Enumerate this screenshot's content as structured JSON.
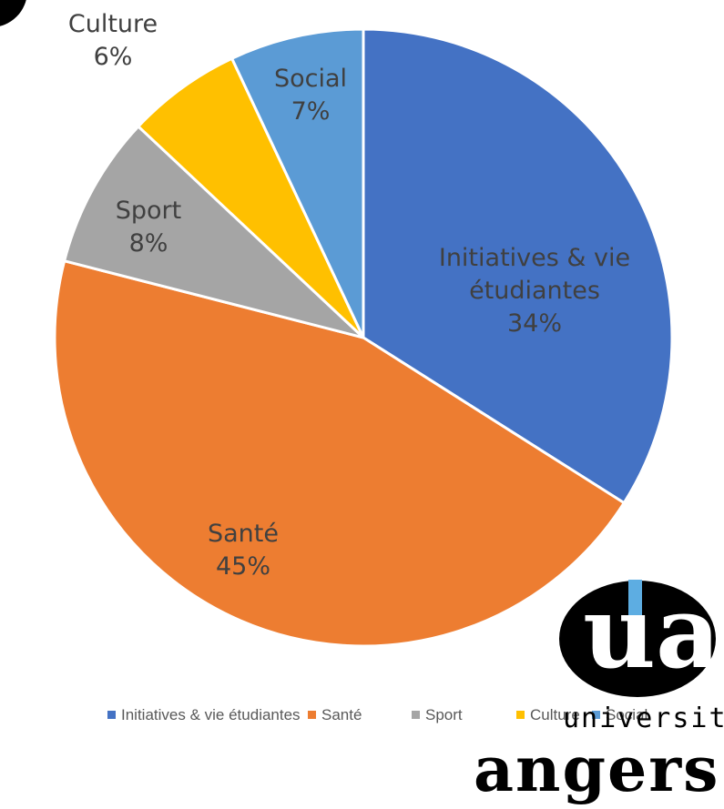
{
  "chart_data": {
    "type": "pie",
    "categories": [
      "Initiatives & vie étudiantes",
      "Santé",
      "Sport",
      "Culture",
      "Social"
    ],
    "values": [
      34,
      45,
      8,
      6,
      7
    ],
    "value_labels": [
      "34%",
      "45%",
      "8%",
      "6%",
      "7%"
    ],
    "colors": [
      "#4472c4",
      "#ed7d31",
      "#a5a5a5",
      "#ffc000",
      "#5b9bd5"
    ],
    "legend": "bottom"
  },
  "logo": {
    "letters": "ua",
    "line1": "université",
    "line2": "angers"
  }
}
